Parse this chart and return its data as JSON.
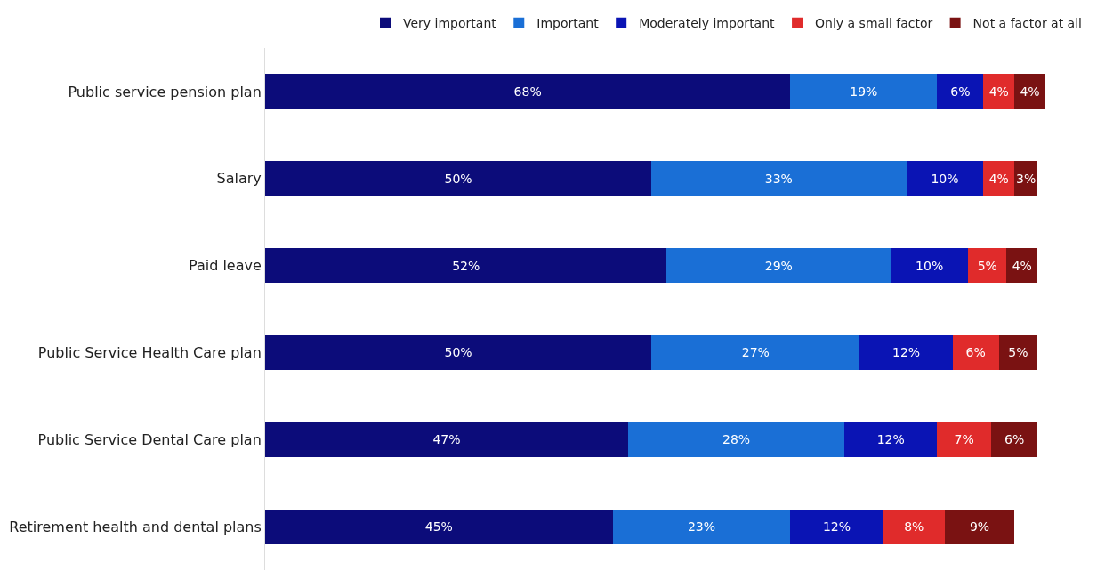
{
  "chart_data": {
    "type": "bar",
    "orientation": "horizontal",
    "stacked": true,
    "legend": "top",
    "categories": [
      "Public service pension plan",
      "Salary",
      "Paid leave",
      "Public Service Health Care plan",
      "Public Service Dental Care plan",
      "Retirement health and dental plans"
    ],
    "series": [
      {
        "name": "Very important",
        "color": "#0c0c7a",
        "values": [
          68,
          50,
          52,
          50,
          47,
          45
        ],
        "value_labels": [
          "68%",
          "50%",
          "52%",
          "50%",
          "47%",
          "45%"
        ]
      },
      {
        "name": "Important",
        "color": "#1a6fd6",
        "values": [
          19,
          33,
          29,
          27,
          28,
          23
        ],
        "value_labels": [
          "19%",
          "33%",
          "29%",
          "27%",
          "28%",
          "23%"
        ]
      },
      {
        "name": "Moderately important",
        "color": "#0a14b4",
        "values": [
          6,
          10,
          10,
          12,
          12,
          12
        ],
        "value_labels": [
          "6%",
          "10%",
          "10%",
          "12%",
          "12%",
          "12%"
        ]
      },
      {
        "name": "Only a small factor",
        "color": "#e02b2b",
        "values": [
          4,
          4,
          5,
          6,
          7,
          8
        ],
        "value_labels": [
          "4%",
          "4%",
          "5%",
          "6%",
          "7%",
          "8%"
        ]
      },
      {
        "name": "Not a factor at all",
        "color": "#7a1212",
        "values": [
          4,
          3,
          4,
          5,
          6,
          9
        ],
        "value_labels": [
          "4%",
          "3%",
          "4%",
          "5%",
          "6%",
          "9%"
        ]
      }
    ]
  }
}
